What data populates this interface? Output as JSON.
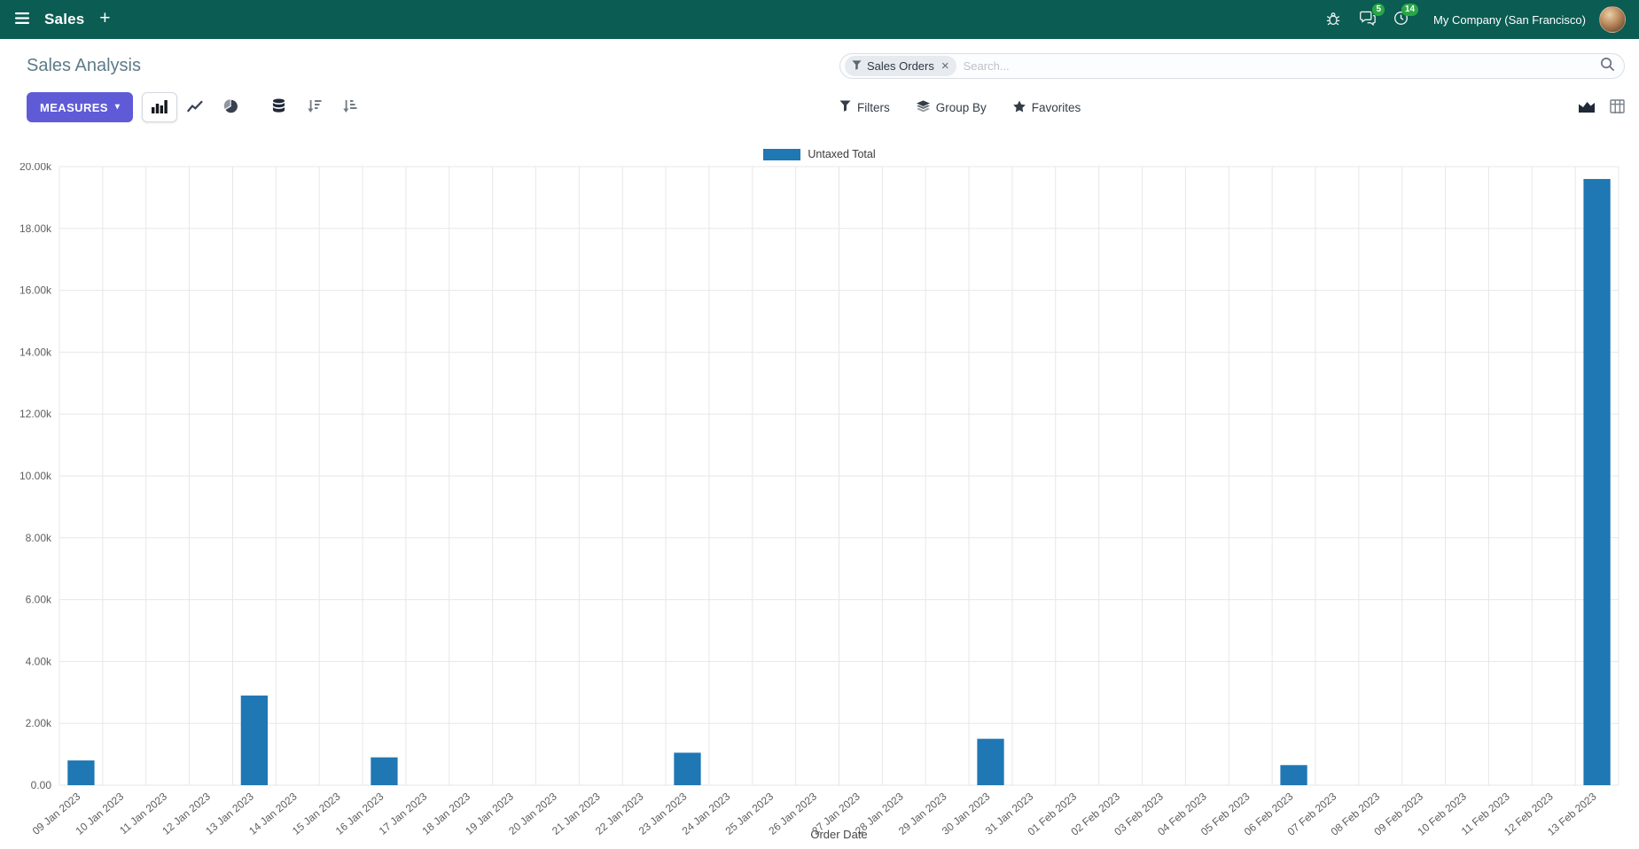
{
  "colors": {
    "nav_bg": "#0b5c53",
    "primary_button": "#5f5bd7",
    "bar_series": "#1f77b4",
    "badge_green": "#28a745"
  },
  "nav": {
    "app_name": "Sales",
    "company_name": "My Company (San Francisco)",
    "messages_badge": "5",
    "activities_badge": "14"
  },
  "control_panel": {
    "title": "Sales Analysis",
    "measures_label": "MEASURES",
    "filters_label": "Filters",
    "group_by_label": "Group By",
    "favorites_label": "Favorites"
  },
  "search": {
    "facet_label": "Sales Orders",
    "placeholder": "Search...",
    "remove_facet_glyph": "×"
  },
  "icons": {
    "plus": "+",
    "caret_down": "▾"
  },
  "chart_data": {
    "type": "bar",
    "title": "",
    "legend": [
      "Untaxed Total"
    ],
    "legend_position": "top",
    "series_color": "#1f77b4",
    "xlabel": "Order Date",
    "ylabel": "",
    "ylim": [
      0,
      20000
    ],
    "ytick_step": 2000,
    "ytick_labels": [
      "0.00",
      "2.00k",
      "4.00k",
      "6.00k",
      "8.00k",
      "10.00k",
      "12.00k",
      "14.00k",
      "16.00k",
      "18.00k",
      "20.00k"
    ],
    "grid": true,
    "categories": [
      "09 Jan 2023",
      "10 Jan 2023",
      "11 Jan 2023",
      "12 Jan 2023",
      "13 Jan 2023",
      "14 Jan 2023",
      "15 Jan 2023",
      "16 Jan 2023",
      "17 Jan 2023",
      "18 Jan 2023",
      "19 Jan 2023",
      "20 Jan 2023",
      "21 Jan 2023",
      "22 Jan 2023",
      "23 Jan 2023",
      "24 Jan 2023",
      "25 Jan 2023",
      "26 Jan 2023",
      "27 Jan 2023",
      "28 Jan 2023",
      "29 Jan 2023",
      "30 Jan 2023",
      "31 Jan 2023",
      "01 Feb 2023",
      "02 Feb 2023",
      "03 Feb 2023",
      "04 Feb 2023",
      "05 Feb 2023",
      "06 Feb 2023",
      "07 Feb 2023",
      "08 Feb 2023",
      "09 Feb 2023",
      "10 Feb 2023",
      "11 Feb 2023",
      "12 Feb 2023",
      "13 Feb 2023"
    ],
    "values": [
      800,
      0,
      0,
      0,
      2900,
      0,
      0,
      900,
      0,
      0,
      0,
      0,
      0,
      0,
      1050,
      0,
      0,
      0,
      0,
      0,
      0,
      1500,
      0,
      0,
      0,
      0,
      0,
      0,
      650,
      0,
      0,
      0,
      0,
      0,
      0,
      19600
    ]
  }
}
